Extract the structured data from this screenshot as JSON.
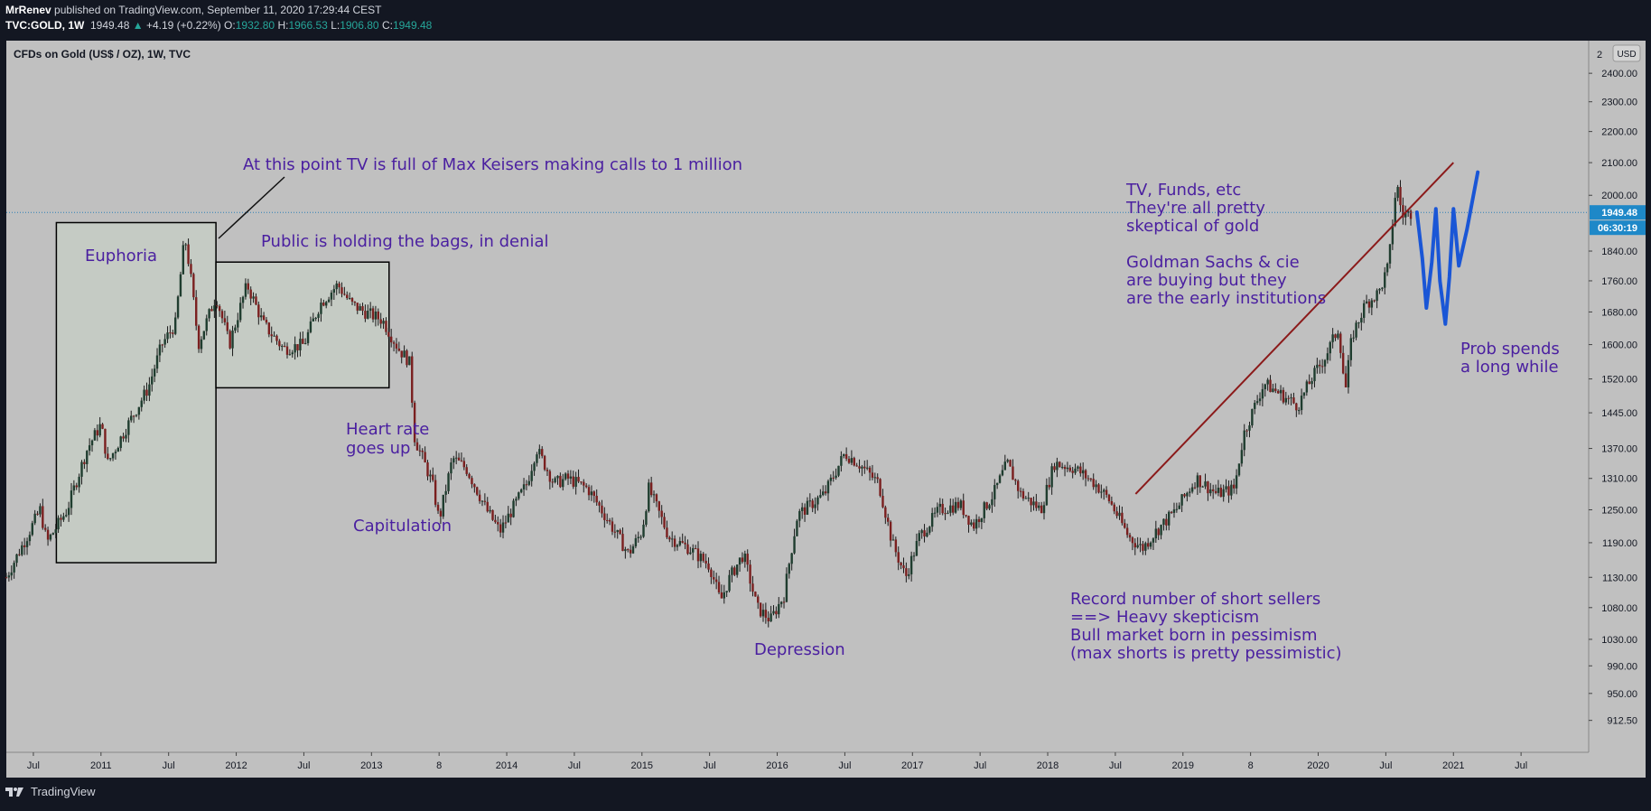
{
  "header": {
    "author": "MrRenev",
    "published": "published on TradingView.com, September 11, 2020 17:29:44 CEST",
    "symbol": "TVC:GOLD, 1W",
    "last": "1949.48",
    "change_arrow": "▲",
    "change": "+4.19 (+0.22%)",
    "o_label": "O:",
    "o": "1932.80",
    "h_label": "H:",
    "h": "1966.53",
    "l_label": "L:",
    "l": "1906.80",
    "c_label": "C:",
    "c": "1949.48"
  },
  "legend": "CFDs on Gold (US$ / OZ), 1W, TVC",
  "footer": {
    "brand": "TradingView"
  },
  "price_axis": {
    "currency": "USD",
    "current_price": "1949.48",
    "countdown": "06:30:19",
    "top_cut_label": "2"
  },
  "colors": {
    "background": "#131722",
    "chart_bg": "#c0c0c0",
    "annotation": "#4a1fa0",
    "box_fill": "#c5cbc4",
    "trendline": "#8b1a1a",
    "projection": "#1a56d6",
    "price_badge": "#1e88c8"
  },
  "chart_data": {
    "type": "candlestick",
    "title": "CFDs on Gold (US$ / OZ), 1W, TVC",
    "xlabel": "",
    "ylabel": "USD",
    "y_scale": "log",
    "ylim": [
      870,
      2520
    ],
    "xlim": [
      2010.3,
      2022.0
    ],
    "y_ticks": [
      {
        "value": 2400,
        "label": "2400.00"
      },
      {
        "value": 2300,
        "label": "2300.00"
      },
      {
        "value": 2200,
        "label": "2200.00"
      },
      {
        "value": 2100,
        "label": "2100.00"
      },
      {
        "value": 2000,
        "label": "2000.00"
      },
      {
        "value": 1840,
        "label": "1840.00"
      },
      {
        "value": 1760,
        "label": "1760.00"
      },
      {
        "value": 1680,
        "label": "1680.00"
      },
      {
        "value": 1600,
        "label": "1600.00"
      },
      {
        "value": 1520,
        "label": "1520.00"
      },
      {
        "value": 1445,
        "label": "1445.00"
      },
      {
        "value": 1370,
        "label": "1370.00"
      },
      {
        "value": 1310,
        "label": "1310.00"
      },
      {
        "value": 1250,
        "label": "1250.00"
      },
      {
        "value": 1190,
        "label": "1190.00"
      },
      {
        "value": 1130,
        "label": "1130.00"
      },
      {
        "value": 1080,
        "label": "1080.00"
      },
      {
        "value": 1030,
        "label": "1030.00"
      },
      {
        "value": 990,
        "label": "990.00"
      },
      {
        "value": 950,
        "label": "950.00"
      },
      {
        "value": 912.5,
        "label": "912.50"
      }
    ],
    "x_ticks": [
      {
        "t": 2010.5,
        "label": "Jul"
      },
      {
        "t": 2011.0,
        "label": "2011"
      },
      {
        "t": 2011.5,
        "label": "Jul"
      },
      {
        "t": 2012.0,
        "label": "2012"
      },
      {
        "t": 2012.5,
        "label": "Jul"
      },
      {
        "t": 2013.0,
        "label": "2013"
      },
      {
        "t": 2013.5,
        "label": "8"
      },
      {
        "t": 2014.0,
        "label": "2014"
      },
      {
        "t": 2014.5,
        "label": "Jul"
      },
      {
        "t": 2015.0,
        "label": "2015"
      },
      {
        "t": 2015.5,
        "label": "Jul"
      },
      {
        "t": 2016.0,
        "label": "2016"
      },
      {
        "t": 2016.5,
        "label": "Jul"
      },
      {
        "t": 2017.0,
        "label": "2017"
      },
      {
        "t": 2017.5,
        "label": "Jul"
      },
      {
        "t": 2018.0,
        "label": "2018"
      },
      {
        "t": 2018.5,
        "label": "Jul"
      },
      {
        "t": 2019.0,
        "label": "2019"
      },
      {
        "t": 2019.5,
        "label": "8"
      },
      {
        "t": 2020.0,
        "label": "2020"
      },
      {
        "t": 2020.5,
        "label": "Jul"
      },
      {
        "t": 2021.0,
        "label": "2021"
      },
      {
        "t": 2021.5,
        "label": "Jul"
      }
    ],
    "price_path": [
      [
        2010.3,
        1130
      ],
      [
        2010.45,
        1200
      ],
      [
        2010.55,
        1250
      ],
      [
        2010.6,
        1190
      ],
      [
        2010.75,
        1250
      ],
      [
        2010.9,
        1370
      ],
      [
        2011.0,
        1420
      ],
      [
        2011.05,
        1340
      ],
      [
        2011.2,
        1420
      ],
      [
        2011.35,
        1500
      ],
      [
        2011.45,
        1600
      ],
      [
        2011.55,
        1650
      ],
      [
        2011.62,
        1880
      ],
      [
        2011.66,
        1780
      ],
      [
        2011.72,
        1600
      ],
      [
        2011.85,
        1720
      ],
      [
        2011.95,
        1600
      ],
      [
        2012.08,
        1750
      ],
      [
        2012.2,
        1650
      ],
      [
        2012.35,
        1590
      ],
      [
        2012.5,
        1600
      ],
      [
        2012.62,
        1700
      ],
      [
        2012.75,
        1750
      ],
      [
        2012.85,
        1700
      ],
      [
        2012.95,
        1680
      ],
      [
        2013.08,
        1660
      ],
      [
        2013.2,
        1590
      ],
      [
        2013.28,
        1560
      ],
      [
        2013.32,
        1390
      ],
      [
        2013.45,
        1300
      ],
      [
        2013.5,
        1230
      ],
      [
        2013.6,
        1350
      ],
      [
        2013.7,
        1330
      ],
      [
        2013.85,
        1250
      ],
      [
        2013.95,
        1210
      ],
      [
        2014.15,
        1300
      ],
      [
        2014.22,
        1370
      ],
      [
        2014.35,
        1300
      ],
      [
        2014.45,
        1310
      ],
      [
        2014.6,
        1290
      ],
      [
        2014.75,
        1230
      ],
      [
        2014.9,
        1170
      ],
      [
        2015.0,
        1210
      ],
      [
        2015.05,
        1290
      ],
      [
        2015.2,
        1200
      ],
      [
        2015.35,
        1180
      ],
      [
        2015.5,
        1150
      ],
      [
        2015.58,
        1090
      ],
      [
        2015.65,
        1130
      ],
      [
        2015.75,
        1170
      ],
      [
        2015.85,
        1080
      ],
      [
        2015.95,
        1060
      ],
      [
        2016.05,
        1100
      ],
      [
        2016.15,
        1240
      ],
      [
        2016.35,
        1280
      ],
      [
        2016.5,
        1360
      ],
      [
        2016.6,
        1340
      ],
      [
        2016.75,
        1300
      ],
      [
        2016.85,
        1190
      ],
      [
        2016.95,
        1130
      ],
      [
        2017.05,
        1200
      ],
      [
        2017.2,
        1250
      ],
      [
        2017.35,
        1260
      ],
      [
        2017.45,
        1220
      ],
      [
        2017.6,
        1280
      ],
      [
        2017.7,
        1340
      ],
      [
        2017.8,
        1280
      ],
      [
        2017.95,
        1250
      ],
      [
        2018.05,
        1340
      ],
      [
        2018.2,
        1330
      ],
      [
        2018.35,
        1300
      ],
      [
        2018.45,
        1270
      ],
      [
        2018.6,
        1200
      ],
      [
        2018.7,
        1180
      ],
      [
        2018.8,
        1210
      ],
      [
        2018.95,
        1250
      ],
      [
        2019.1,
        1310
      ],
      [
        2019.25,
        1280
      ],
      [
        2019.38,
        1290
      ],
      [
        2019.45,
        1400
      ],
      [
        2019.6,
        1510
      ],
      [
        2019.75,
        1480
      ],
      [
        2019.85,
        1460
      ],
      [
        2019.95,
        1520
      ],
      [
        2020.05,
        1570
      ],
      [
        2020.15,
        1640
      ],
      [
        2020.2,
        1490
      ],
      [
        2020.25,
        1620
      ],
      [
        2020.35,
        1700
      ],
      [
        2020.45,
        1730
      ],
      [
        2020.52,
        1800
      ],
      [
        2020.58,
        2040
      ],
      [
        2020.62,
        1940
      ],
      [
        2020.69,
        1949.48
      ]
    ],
    "trendline": [
      [
        2018.65,
        1280
      ],
      [
        2021.0,
        2100
      ]
    ],
    "projection": [
      [
        2020.73,
        1950
      ],
      [
        2020.77,
        1820
      ],
      [
        2020.8,
        1690
      ],
      [
        2020.84,
        1810
      ],
      [
        2020.87,
        1960
      ],
      [
        2020.9,
        1760
      ],
      [
        2020.94,
        1650
      ],
      [
        2020.97,
        1770
      ],
      [
        2021.0,
        1960
      ],
      [
        2021.04,
        1800
      ],
      [
        2021.1,
        1900
      ],
      [
        2021.18,
        2070
      ]
    ],
    "current_price": 1949.48,
    "boxes": [
      {
        "name": "euphoria",
        "t0": 2010.67,
        "t1": 2011.85,
        "p0": 1155,
        "p1": 1920,
        "filled": true
      },
      {
        "name": "denial",
        "t0": 2011.85,
        "t1": 2013.13,
        "p0": 1500,
        "p1": 1810,
        "filled": true
      }
    ],
    "annotations": [
      {
        "name": "max-keiser",
        "text": "At this point TV is full of Max Keisers making calls to 1 million"
      },
      {
        "name": "euphoria",
        "text": "Euphoria"
      },
      {
        "name": "denial",
        "text": "Public is holding the bags, in denial"
      },
      {
        "name": "heart-rate",
        "lines": [
          "Heart rate",
          "goes up"
        ]
      },
      {
        "name": "capitulation",
        "text": "Capitulation"
      },
      {
        "name": "depression",
        "text": "Depression"
      },
      {
        "name": "tv-funds",
        "lines": [
          "TV, Funds, etc",
          "They're all pretty",
          "skeptical of gold",
          "",
          "Goldman Sachs & cie",
          "are buying but they",
          "are the early institutions"
        ]
      },
      {
        "name": "short-sellers",
        "lines": [
          "Record number of short sellers",
          "==> Heavy skepticism",
          "Bull market born in pessimism",
          "(max shorts is pretty pessimistic)"
        ]
      },
      {
        "name": "prob-spends",
        "lines": [
          "Prob spends",
          "a long while"
        ]
      }
    ]
  }
}
